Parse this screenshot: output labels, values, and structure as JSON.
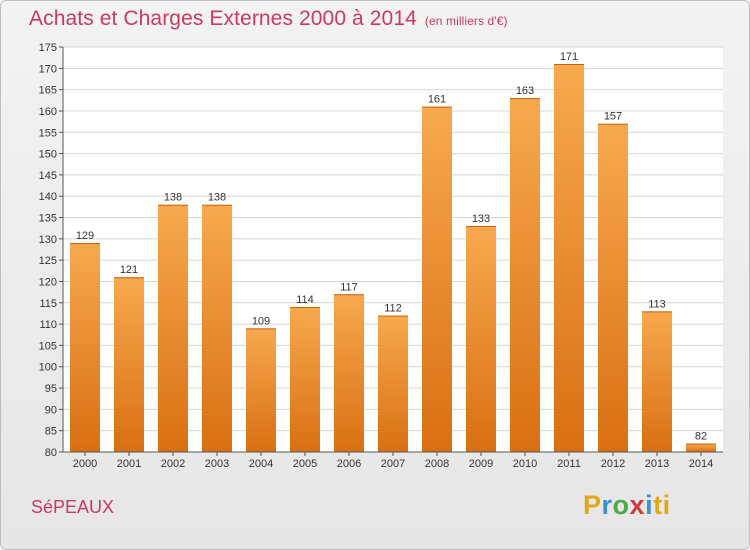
{
  "header": {
    "title": "Achats et Charges Externes 2000 à 2014",
    "subtitle": "(en milliers d'€)"
  },
  "footer": {
    "commune": "SéPEAUX",
    "logo_letters": [
      "P",
      "r",
      "o",
      "x",
      "i",
      "t",
      "i"
    ]
  },
  "colors": {
    "title": "#cc3a5d",
    "bar_top": "#f7a94e",
    "bar_bottom": "#d96f13",
    "grid": "#d4d4d4"
  },
  "chart_data": {
    "type": "bar",
    "title": "Achats et Charges Externes 2000 à 2014",
    "subtitle": "(en milliers d'€)",
    "xlabel": "",
    "ylabel": "",
    "categories": [
      "2000",
      "2001",
      "2002",
      "2003",
      "2004",
      "2005",
      "2006",
      "2007",
      "2008",
      "2009",
      "2010",
      "2011",
      "2012",
      "2013",
      "2014"
    ],
    "values": [
      129,
      121,
      138,
      138,
      109,
      114,
      117,
      112,
      161,
      133,
      163,
      171,
      157,
      113,
      82
    ],
    "ylim": [
      80,
      175
    ],
    "yticks": [
      80,
      85,
      90,
      95,
      100,
      105,
      110,
      115,
      120,
      125,
      130,
      135,
      140,
      145,
      150,
      155,
      160,
      165,
      170,
      175
    ],
    "grid": true,
    "legend": "none"
  }
}
